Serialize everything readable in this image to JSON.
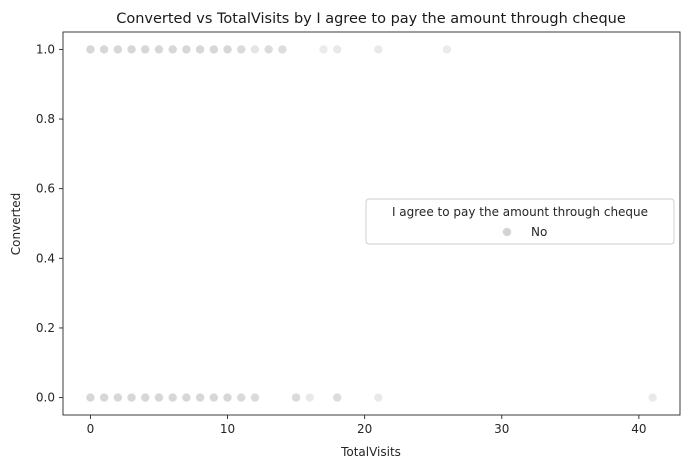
{
  "chart_data": {
    "type": "scatter",
    "title": "Converted vs TotalVisits by I agree to pay the amount through cheque",
    "xlabel": "TotalVisits",
    "ylabel": "Converted",
    "xlim": [
      -2,
      43
    ],
    "ylim": [
      -0.05,
      1.05
    ],
    "xticks": [
      0,
      10,
      20,
      30,
      40
    ],
    "yticks": [
      0.0,
      0.2,
      0.4,
      0.6,
      0.8,
      1.0
    ],
    "xtick_labels": [
      "0",
      "10",
      "20",
      "30",
      "40"
    ],
    "ytick_labels": [
      "0.0",
      "0.2",
      "0.4",
      "0.6",
      "0.8",
      "1.0"
    ],
    "grid": false,
    "legend": {
      "title": "I agree to pay the amount through cheque",
      "placement": "center-right"
    },
    "series": [
      {
        "name": "No",
        "color": "#d3d3d3",
        "points": [
          {
            "x": 0,
            "y": 1
          },
          {
            "x": 1,
            "y": 1
          },
          {
            "x": 2,
            "y": 1
          },
          {
            "x": 3,
            "y": 1
          },
          {
            "x": 4,
            "y": 1
          },
          {
            "x": 5,
            "y": 1
          },
          {
            "x": 6,
            "y": 1
          },
          {
            "x": 7,
            "y": 1
          },
          {
            "x": 8,
            "y": 1
          },
          {
            "x": 9,
            "y": 1
          },
          {
            "x": 10,
            "y": 1
          },
          {
            "x": 11,
            "y": 1
          },
          {
            "x": 12,
            "y": 1
          },
          {
            "x": 13,
            "y": 1
          },
          {
            "x": 14,
            "y": 1
          },
          {
            "x": 17,
            "y": 1
          },
          {
            "x": 18,
            "y": 1
          },
          {
            "x": 21,
            "y": 1
          },
          {
            "x": 26,
            "y": 1
          },
          {
            "x": 0,
            "y": 0
          },
          {
            "x": 1,
            "y": 0
          },
          {
            "x": 2,
            "y": 0
          },
          {
            "x": 3,
            "y": 0
          },
          {
            "x": 4,
            "y": 0
          },
          {
            "x": 5,
            "y": 0
          },
          {
            "x": 6,
            "y": 0
          },
          {
            "x": 7,
            "y": 0
          },
          {
            "x": 8,
            "y": 0
          },
          {
            "x": 9,
            "y": 0
          },
          {
            "x": 10,
            "y": 0
          },
          {
            "x": 11,
            "y": 0
          },
          {
            "x": 12,
            "y": 0
          },
          {
            "x": 15,
            "y": 0
          },
          {
            "x": 16,
            "y": 0
          },
          {
            "x": 18,
            "y": 0
          },
          {
            "x": 21,
            "y": 0
          },
          {
            "x": 41,
            "y": 0
          }
        ],
        "opacities": [
          0.9,
          0.9,
          0.9,
          0.9,
          0.9,
          0.9,
          0.9,
          0.9,
          0.9,
          0.9,
          0.9,
          0.85,
          0.6,
          0.8,
          0.8,
          0.45,
          0.5,
          0.5,
          0.45,
          0.9,
          0.9,
          0.9,
          0.9,
          0.9,
          0.9,
          0.9,
          0.9,
          0.9,
          0.9,
          0.9,
          0.85,
          0.85,
          0.85,
          0.5,
          0.8,
          0.5,
          0.5
        ]
      }
    ]
  }
}
